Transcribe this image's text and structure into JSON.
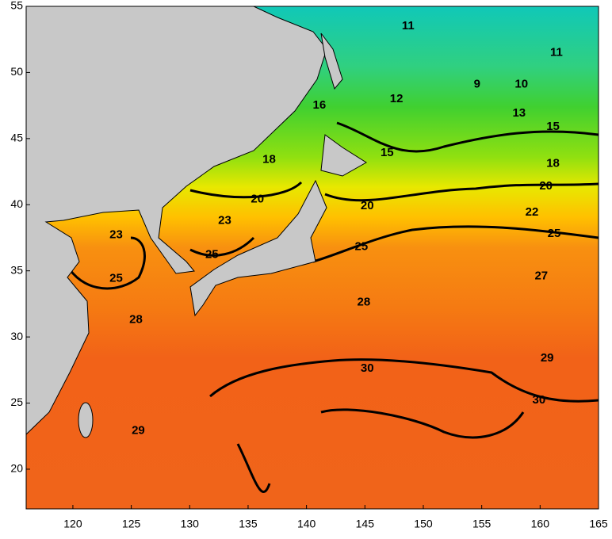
{
  "map": {
    "xlim": [
      116,
      165
    ],
    "ylim": [
      17,
      55
    ],
    "xticks": [
      120,
      125,
      130,
      135,
      140,
      145,
      150,
      155,
      160,
      165
    ],
    "yticks": [
      20,
      25,
      30,
      35,
      40,
      45,
      50,
      55
    ],
    "contour_labels": [
      {
        "lon": 148.7,
        "lat": 53.5,
        "value": 11
      },
      {
        "lon": 161.4,
        "lat": 51.5,
        "value": 11
      },
      {
        "lon": 154.6,
        "lat": 49.1,
        "value": 9
      },
      {
        "lon": 158.4,
        "lat": 49.1,
        "value": 10
      },
      {
        "lon": 147.7,
        "lat": 48.0,
        "value": 12
      },
      {
        "lon": 141.1,
        "lat": 47.5,
        "value": 16
      },
      {
        "lon": 158.2,
        "lat": 46.9,
        "value": 13
      },
      {
        "lon": 161.1,
        "lat": 45.9,
        "value": 15
      },
      {
        "lon": 146.9,
        "lat": 43.9,
        "value": 15
      },
      {
        "lon": 136.8,
        "lat": 43.4,
        "value": 18
      },
      {
        "lon": 161.1,
        "lat": 43.1,
        "value": 18
      },
      {
        "lon": 135.8,
        "lat": 40.4,
        "value": 20
      },
      {
        "lon": 160.5,
        "lat": 41.4,
        "value": 20
      },
      {
        "lon": 145.2,
        "lat": 39.9,
        "value": 20
      },
      {
        "lon": 159.3,
        "lat": 39.4,
        "value": 22
      },
      {
        "lon": 133.0,
        "lat": 38.8,
        "value": 23
      },
      {
        "lon": 123.7,
        "lat": 37.7,
        "value": 23
      },
      {
        "lon": 161.2,
        "lat": 37.8,
        "value": 25
      },
      {
        "lon": 131.9,
        "lat": 36.2,
        "value": 25
      },
      {
        "lon": 144.7,
        "lat": 36.8,
        "value": 25
      },
      {
        "lon": 123.7,
        "lat": 34.4,
        "value": 25
      },
      {
        "lon": 160.1,
        "lat": 34.6,
        "value": 27
      },
      {
        "lon": 144.9,
        "lat": 32.6,
        "value": 28
      },
      {
        "lon": 125.4,
        "lat": 31.3,
        "value": 28
      },
      {
        "lon": 160.6,
        "lat": 28.4,
        "value": 29
      },
      {
        "lon": 145.2,
        "lat": 27.6,
        "value": 30
      },
      {
        "lon": 159.9,
        "lat": 25.2,
        "value": 30
      },
      {
        "lon": 125.6,
        "lat": 22.9,
        "value": 29
      }
    ]
  }
}
